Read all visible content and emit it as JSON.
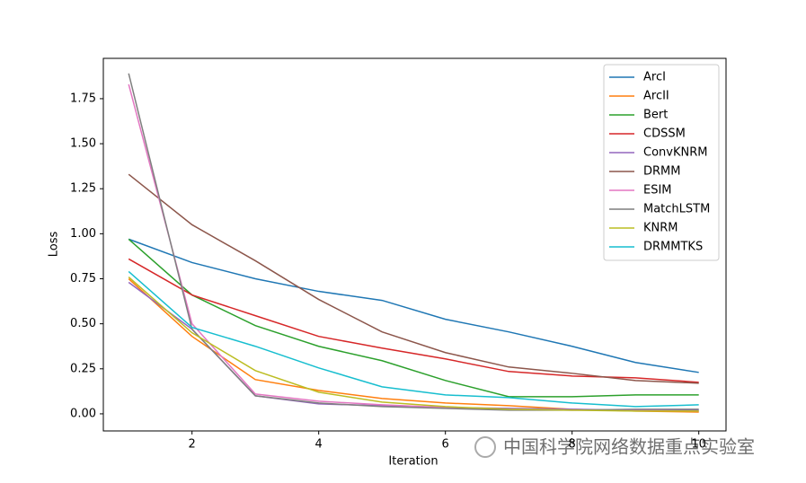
{
  "chart_data": {
    "type": "line",
    "xlabel": "Iteration",
    "ylabel": "Loss",
    "x": [
      1,
      2,
      3,
      4,
      5,
      6,
      7,
      8,
      9,
      10
    ],
    "xlim": [
      0.6,
      10.43
    ],
    "ylim": [
      -0.095,
      1.974
    ],
    "xticks": [
      2,
      4,
      6,
      8,
      10
    ],
    "yticks": [
      {
        "value": 0,
        "label": "0.00"
      },
      {
        "value": 0.25,
        "label": "0.25"
      },
      {
        "value": 0.5,
        "label": "0.50"
      },
      {
        "value": 0.75,
        "label": "0.75"
      },
      {
        "value": 1,
        "label": "1.00"
      },
      {
        "value": 1.25,
        "label": "1.25"
      },
      {
        "value": 1.5,
        "label": "1.50"
      },
      {
        "value": 1.75,
        "label": "1.75"
      }
    ],
    "legend": "upper right",
    "series": [
      {
        "name": "ArcI",
        "color": "#1f77b4",
        "values": [
          0.97,
          0.84,
          0.75,
          0.68,
          0.63,
          0.525,
          0.455,
          0.375,
          0.285,
          0.23
        ]
      },
      {
        "name": "ArcII",
        "color": "#ff7f0e",
        "values": [
          0.75,
          0.43,
          0.19,
          0.13,
          0.085,
          0.06,
          0.045,
          0.025,
          0.015,
          0.01
        ]
      },
      {
        "name": "Bert",
        "color": "#2ca02c",
        "values": [
          0.97,
          0.66,
          0.49,
          0.375,
          0.295,
          0.185,
          0.095,
          0.095,
          0.105,
          0.105
        ]
      },
      {
        "name": "CDSSM",
        "color": "#d62728",
        "values": [
          0.86,
          0.66,
          0.545,
          0.43,
          0.365,
          0.305,
          0.235,
          0.21,
          0.2,
          0.175
        ]
      },
      {
        "name": "ConvKNRM",
        "color": "#9467bd",
        "values": [
          0.73,
          0.47,
          0.1,
          0.055,
          0.045,
          0.035,
          0.03,
          0.025,
          0.02,
          0.02
        ]
      },
      {
        "name": "DRMM",
        "color": "#8c564b",
        "values": [
          1.33,
          1.05,
          0.85,
          0.635,
          0.455,
          0.34,
          0.26,
          0.225,
          0.185,
          0.17
        ]
      },
      {
        "name": "ESIM",
        "color": "#e377c2",
        "values": [
          1.83,
          0.5,
          0.11,
          0.07,
          0.05,
          0.035,
          0.025,
          0.02,
          0.02,
          0.015
        ]
      },
      {
        "name": "MatchLSTM",
        "color": "#7f7f7f",
        "values": [
          1.89,
          0.47,
          0.1,
          0.06,
          0.04,
          0.03,
          0.02,
          0.02,
          0.025,
          0.025
        ]
      },
      {
        "name": "KNRM",
        "color": "#bcbd22",
        "values": [
          0.76,
          0.45,
          0.24,
          0.12,
          0.065,
          0.04,
          0.025,
          0.02,
          0.015,
          0.015
        ]
      },
      {
        "name": "DRMMTKS",
        "color": "#17becf",
        "values": [
          0.79,
          0.48,
          0.375,
          0.255,
          0.15,
          0.105,
          0.09,
          0.06,
          0.04,
          0.05
        ]
      }
    ]
  },
  "watermark": "中国科学院网络数据重点实验室"
}
